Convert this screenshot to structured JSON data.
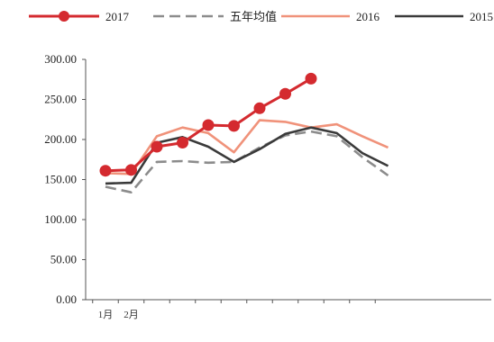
{
  "chart_data": {
    "type": "line",
    "title": "",
    "xlabel": "",
    "ylabel": "",
    "x": [
      1,
      2,
      3,
      4,
      5,
      6,
      7,
      8,
      9,
      10,
      11,
      12
    ],
    "x_tick_labels": [
      "1月",
      "2月",
      "",
      "",
      "",
      "",
      "",
      "",
      "",
      "",
      "",
      ""
    ],
    "ylim": [
      0,
      300
    ],
    "y_tick_labels": [
      "0.00",
      "50.00",
      "100.00",
      "150.00",
      "200.00",
      "250.00",
      "300.00"
    ],
    "y_ticks": [
      0,
      50,
      100,
      150,
      200,
      250,
      300
    ],
    "grid": false,
    "legend_position": "top",
    "series": [
      {
        "name": "2017",
        "color": "#d42a2f",
        "style": "solid-markers",
        "values": [
          161,
          162,
          191,
          196,
          218,
          217,
          239,
          257,
          276,
          null,
          null,
          null
        ]
      },
      {
        "name": "五年均值",
        "color": "#8c8c8c",
        "style": "dashed",
        "values": [
          141,
          134,
          172,
          173,
          171,
          172,
          190,
          205,
          210,
          204,
          178,
          155
        ]
      },
      {
        "name": "2016",
        "color": "#f0927a",
        "style": "solid",
        "values": [
          158,
          157,
          204,
          215,
          208,
          184,
          224,
          222,
          215,
          219,
          204,
          190
        ]
      },
      {
        "name": "2015",
        "color": "#3a3a3a",
        "style": "solid",
        "values": [
          145,
          146,
          196,
          203,
          191,
          172,
          188,
          207,
          215,
          208,
          183,
          167
        ]
      }
    ]
  }
}
